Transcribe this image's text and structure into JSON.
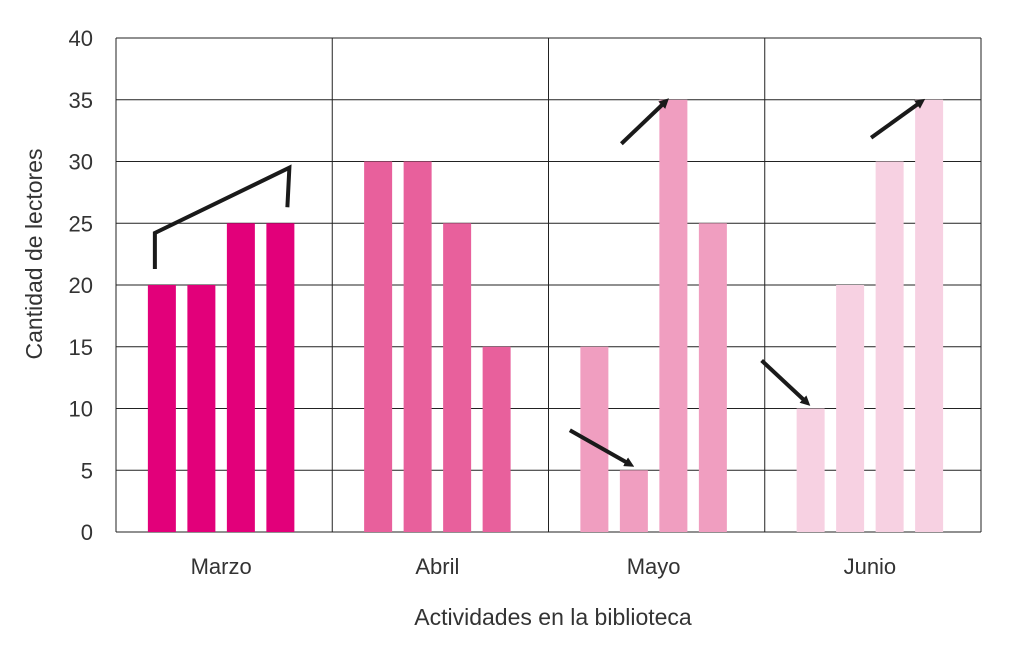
{
  "chart_data": {
    "type": "bar",
    "title": "",
    "xlabel": "Actividades en la biblioteca",
    "ylabel": "Cantidad de lectores",
    "ylim": [
      0,
      40
    ],
    "yticks": [
      0,
      5,
      10,
      15,
      20,
      25,
      30,
      35,
      40
    ],
    "grid": true,
    "legend": "none",
    "categories": [
      "Marzo",
      "Abril",
      "Mayo",
      "Junio"
    ],
    "groups": [
      {
        "category": "Marzo",
        "color": "#e2007a",
        "values": [
          20,
          20,
          25,
          25
        ]
      },
      {
        "category": "Abril",
        "color": "#e8609c",
        "values": [
          30,
          30,
          25,
          15
        ]
      },
      {
        "category": "Mayo",
        "color": "#f09ec0",
        "values": [
          15,
          5,
          35,
          25
        ]
      },
      {
        "category": "Junio",
        "color": "#f7d1e2",
        "values": [
          10,
          20,
          30,
          35
        ]
      }
    ],
    "annotations": [
      {
        "category": "Marzo",
        "shape": "bracket-rising",
        "note": "bracket over bars rising from 20 to 25"
      },
      {
        "category": "Mayo",
        "shape": "arrow-down-right",
        "target_bar": 1
      },
      {
        "category": "Mayo",
        "shape": "arrow-up-right",
        "target_bar": 2
      },
      {
        "category": "Junio",
        "shape": "arrow-down-right",
        "target_bar": 0
      },
      {
        "category": "Junio",
        "shape": "arrow-up-right",
        "target_bar": 3
      }
    ]
  }
}
